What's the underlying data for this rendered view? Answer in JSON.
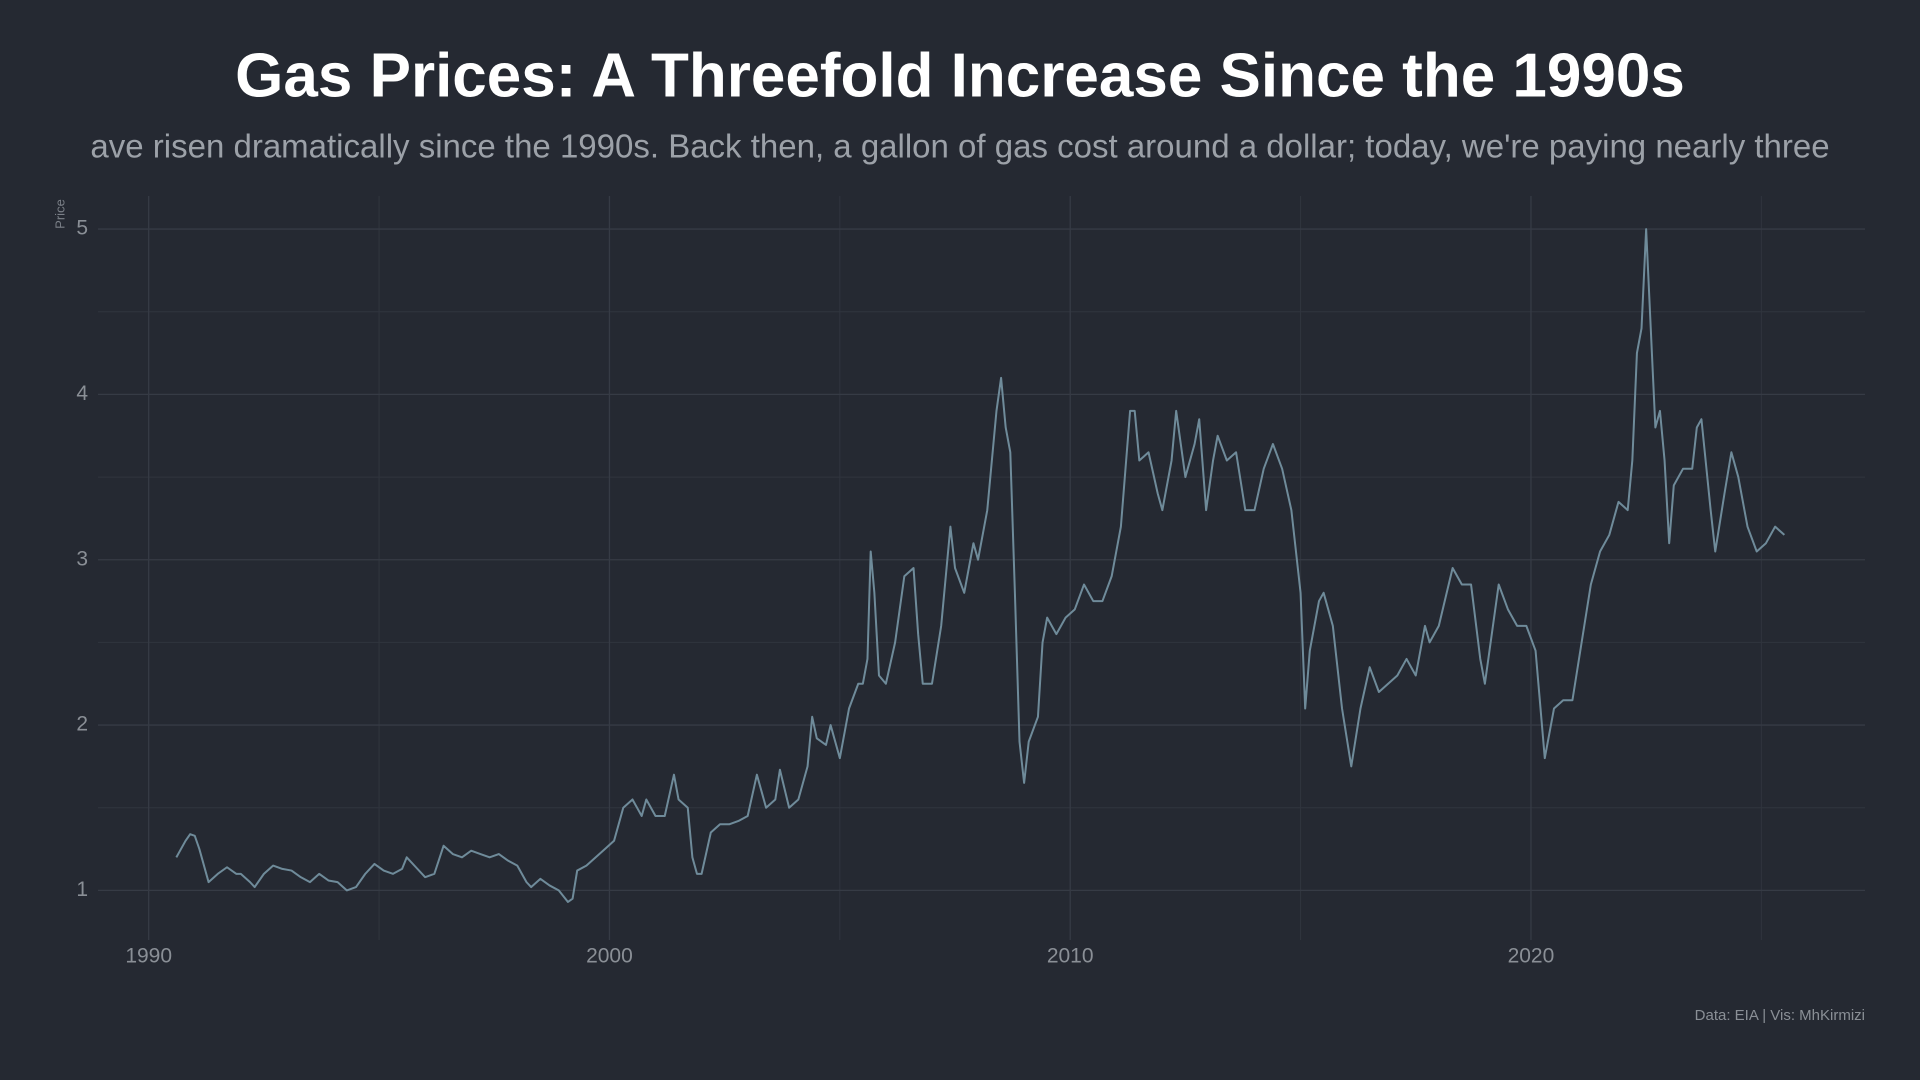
{
  "chart_data": {
    "type": "line",
    "title": "Gas Prices: A Threefold Increase Since the 1990s",
    "subtitle": "ave risen dramatically since the 1990s. Back then, a gallon of gas cost around a dollar; today, we're paying nearly three",
    "y_label": "Price",
    "caption": "Data: EIA | Vis: MhKirmizi",
    "color": "#6f8b9a",
    "grid": true,
    "xlim": [
      1988.9,
      2027.25
    ],
    "ylim": [
      0.7,
      5.2
    ],
    "xticks": [
      1990,
      2000,
      2010,
      2020
    ],
    "yticks": [
      1,
      2,
      3,
      4,
      5
    ],
    "xminor": [
      1995,
      2005,
      2015,
      2025
    ],
    "yminor": [
      1.5,
      2.5,
      3.5,
      4.5
    ],
    "x": [
      1990.6,
      1990.8,
      1990.9,
      1991.0,
      1991.1,
      1991.3,
      1991.5,
      1991.7,
      1991.9,
      1992.0,
      1992.2,
      1992.3,
      1992.5,
      1992.7,
      1992.9,
      1993.1,
      1993.3,
      1993.5,
      1993.7,
      1993.9,
      1994.1,
      1994.3,
      1994.5,
      1994.7,
      1994.9,
      1995.1,
      1995.3,
      1995.5,
      1995.6,
      1995.8,
      1996.0,
      1996.2,
      1996.4,
      1996.6,
      1996.8,
      1997.0,
      1997.2,
      1997.4,
      1997.6,
      1997.8,
      1998.0,
      1998.2,
      1998.3,
      1998.5,
      1998.7,
      1998.9,
      1999.1,
      1999.2,
      1999.3,
      1999.5,
      1999.7,
      1999.9,
      2000.1,
      2000.3,
      2000.5,
      2000.7,
      2000.8,
      2000.9,
      2001.0,
      2001.2,
      2001.4,
      2001.5,
      2001.7,
      2001.8,
      2001.9,
      2002.0,
      2002.2,
      2002.4,
      2002.6,
      2002.8,
      2003.0,
      2003.2,
      2003.4,
      2003.6,
      2003.7,
      2003.9,
      2004.1,
      2004.3,
      2004.4,
      2004.5,
      2004.7,
      2004.8,
      2005.0,
      2005.2,
      2005.4,
      2005.5,
      2005.6,
      2005.67,
      2005.75,
      2005.85,
      2006.0,
      2006.2,
      2006.4,
      2006.6,
      2006.7,
      2006.8,
      2007.0,
      2007.2,
      2007.4,
      2007.5,
      2007.7,
      2007.9,
      2008.0,
      2008.2,
      2008.4,
      2008.5,
      2008.6,
      2008.7,
      2008.8,
      2008.9,
      2009.0,
      2009.1,
      2009.3,
      2009.4,
      2009.5,
      2009.7,
      2009.9,
      2010.1,
      2010.3,
      2010.5,
      2010.7,
      2010.9,
      2011.1,
      2011.3,
      2011.4,
      2011.5,
      2011.7,
      2011.9,
      2012.0,
      2012.2,
      2012.3,
      2012.5,
      2012.7,
      2012.8,
      2012.95,
      2013.1,
      2013.2,
      2013.4,
      2013.6,
      2013.8,
      2014.0,
      2014.2,
      2014.4,
      2014.6,
      2014.8,
      2015.0,
      2015.1,
      2015.2,
      2015.4,
      2015.5,
      2015.7,
      2015.9,
      2016.1,
      2016.3,
      2016.5,
      2016.7,
      2016.9,
      2017.1,
      2017.3,
      2017.5,
      2017.7,
      2017.8,
      2018.0,
      2018.3,
      2018.5,
      2018.7,
      2018.9,
      2019.0,
      2019.3,
      2019.5,
      2019.7,
      2019.9,
      2020.1,
      2020.3,
      2020.5,
      2020.7,
      2020.9,
      2021.1,
      2021.3,
      2021.5,
      2021.7,
      2021.9,
      2022.1,
      2022.2,
      2022.3,
      2022.4,
      2022.5,
      2022.6,
      2022.7,
      2022.8,
      2022.9,
      2023.0,
      2023.1,
      2023.3,
      2023.5,
      2023.6,
      2023.7,
      2023.9,
      2024.0,
      2024.2,
      2024.35,
      2024.5,
      2024.7,
      2024.9,
      2025.1,
      2025.3,
      2025.5
    ],
    "values": [
      1.2,
      1.3,
      1.34,
      1.33,
      1.25,
      1.05,
      1.1,
      1.14,
      1.1,
      1.1,
      1.05,
      1.02,
      1.1,
      1.15,
      1.13,
      1.12,
      1.08,
      1.05,
      1.1,
      1.06,
      1.05,
      1.0,
      1.02,
      1.1,
      1.16,
      1.12,
      1.1,
      1.13,
      1.2,
      1.14,
      1.08,
      1.1,
      1.27,
      1.22,
      1.2,
      1.24,
      1.22,
      1.2,
      1.22,
      1.18,
      1.15,
      1.05,
      1.02,
      1.07,
      1.03,
      1.0,
      0.93,
      0.95,
      1.12,
      1.15,
      1.2,
      1.25,
      1.3,
      1.5,
      1.55,
      1.45,
      1.55,
      1.5,
      1.45,
      1.45,
      1.7,
      1.55,
      1.5,
      1.2,
      1.1,
      1.1,
      1.35,
      1.4,
      1.4,
      1.42,
      1.45,
      1.7,
      1.5,
      1.55,
      1.73,
      1.5,
      1.55,
      1.75,
      2.05,
      1.92,
      1.88,
      2.0,
      1.8,
      2.1,
      2.25,
      2.25,
      2.4,
      3.05,
      2.8,
      2.3,
      2.25,
      2.5,
      2.9,
      2.95,
      2.55,
      2.25,
      2.25,
      2.6,
      3.2,
      2.95,
      2.8,
      3.1,
      3.0,
      3.3,
      3.9,
      4.1,
      3.8,
      3.65,
      2.8,
      1.9,
      1.65,
      1.9,
      2.05,
      2.5,
      2.65,
      2.55,
      2.65,
      2.7,
      2.85,
      2.75,
      2.75,
      2.9,
      3.2,
      3.9,
      3.9,
      3.6,
      3.65,
      3.4,
      3.3,
      3.6,
      3.9,
      3.5,
      3.7,
      3.85,
      3.3,
      3.6,
      3.75,
      3.6,
      3.65,
      3.3,
      3.3,
      3.55,
      3.7,
      3.55,
      3.3,
      2.8,
      2.1,
      2.45,
      2.75,
      2.8,
      2.6,
      2.1,
      1.75,
      2.1,
      2.35,
      2.2,
      2.25,
      2.3,
      2.4,
      2.3,
      2.6,
      2.5,
      2.6,
      2.95,
      2.85,
      2.85,
      2.4,
      2.25,
      2.85,
      2.7,
      2.6,
      2.6,
      2.45,
      1.8,
      2.1,
      2.15,
      2.15,
      2.5,
      2.85,
      3.05,
      3.15,
      3.35,
      3.3,
      3.6,
      4.25,
      4.4,
      5.0,
      4.4,
      3.8,
      3.9,
      3.6,
      3.1,
      3.45,
      3.55,
      3.55,
      3.8,
      3.85,
      3.3,
      3.05,
      3.4,
      3.65,
      3.5,
      3.2,
      3.05,
      3.1,
      3.2,
      3.15
    ]
  }
}
